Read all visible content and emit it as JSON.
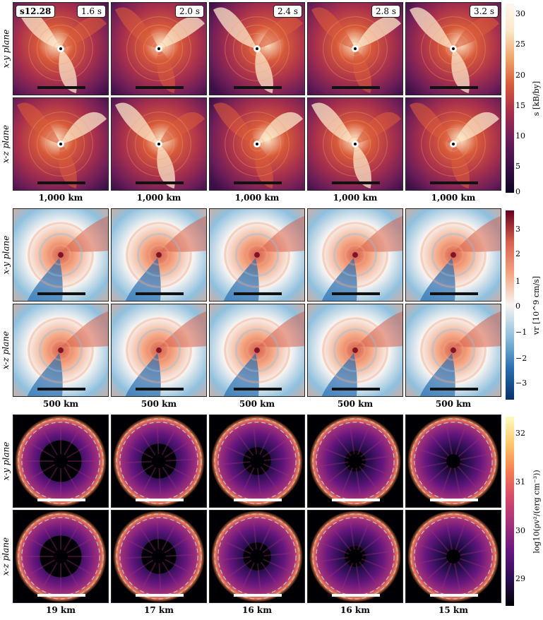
{
  "model_label": "s12.28",
  "times": [
    "1.6 s",
    "2.0 s",
    "2.4 s",
    "2.8 s",
    "3.2 s"
  ],
  "row_labels": [
    "x-y plane",
    "x-z plane",
    "x-y plane",
    "x-z plane",
    "x-y plane",
    "x-z plane"
  ],
  "scale_rows": [
    [
      "1,000 km",
      "1,000 km",
      "1,000 km",
      "1,000 km",
      "1,000 km"
    ],
    [
      "500 km",
      "500 km",
      "500 km",
      "500 km",
      "500 km"
    ],
    [
      "19 km",
      "17 km",
      "16 km",
      "16 km",
      "15 km"
    ]
  ],
  "colorbars": [
    {
      "label": "s [kB/by]",
      "ticks": [
        "30",
        "25",
        "20",
        "15",
        "10",
        "5",
        "0"
      ]
    },
    {
      "label": "vr [10^9 cm/s]",
      "ticks": [
        "3",
        "2",
        "1",
        "0",
        "−1",
        "−2",
        "−3"
      ]
    },
    {
      "label": "log10(ρv²/(erg cm⁻³))",
      "ticks": [
        "32",
        "31",
        "30",
        "29"
      ]
    }
  ],
  "colors": {
    "entropy": [
      "#0b0724",
      "#3b0f48",
      "#6e1e58",
      "#a8304c",
      "#d85a3a",
      "#f0a76a",
      "#fbe7c9",
      "#fff8ee"
    ],
    "velocity": [
      "#08306b",
      "#2b6fb0",
      "#8fc0de",
      "#f7f4f2",
      "#f4a582",
      "#d6604d",
      "#67001f"
    ],
    "pressure": [
      "#000004",
      "#2b0f54",
      "#65167e",
      "#a1307a",
      "#d7496a",
      "#f67e50",
      "#fcc86b",
      "#fcfdbf"
    ]
  }
}
